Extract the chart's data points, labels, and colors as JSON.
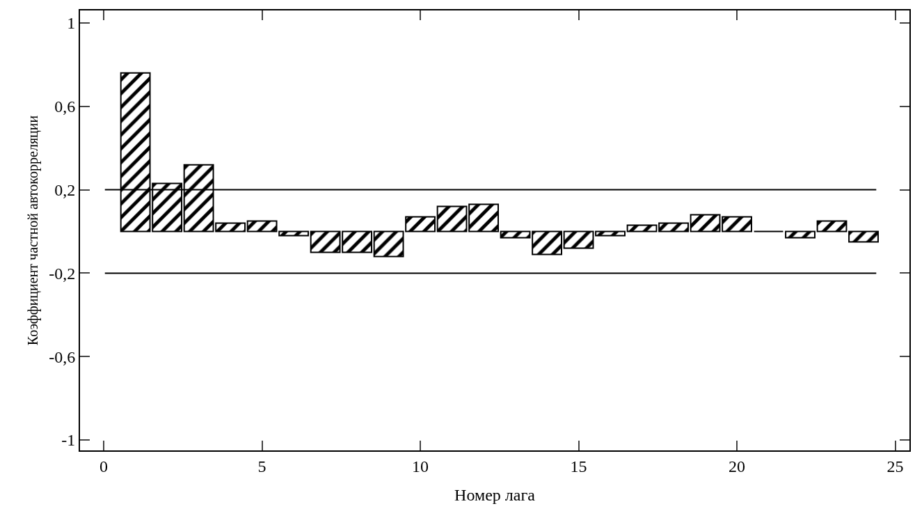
{
  "chart_data": {
    "type": "bar",
    "xlabel": "Номер лага",
    "ylabel": "Коэффициент частной автокорреляции",
    "x": [
      1,
      2,
      3,
      4,
      5,
      6,
      7,
      8,
      9,
      10,
      11,
      12,
      13,
      14,
      15,
      16,
      17,
      18,
      19,
      20,
      21,
      22,
      23,
      24
    ],
    "values": [
      0.76,
      0.23,
      0.32,
      0.04,
      0.05,
      -0.02,
      -0.1,
      -0.1,
      -0.12,
      0.07,
      0.12,
      0.13,
      -0.03,
      -0.11,
      -0.08,
      -0.02,
      0.03,
      0.04,
      0.08,
      0.07,
      0,
      -0.03,
      0.05,
      -0.05
    ],
    "color": "#000000",
    "xlim": [
      -0.75,
      25.45
    ],
    "xticks": [
      0,
      5,
      10,
      15,
      20,
      25
    ],
    "ylim": [
      -1.05,
      1.06
    ],
    "yticks": [
      1,
      {
        "value": 0.6,
        "label": "0,6"
      },
      {
        "value": 0.2,
        "label": "0,2"
      },
      {
        "value": -0.2,
        "label": "-0,2"
      },
      {
        "value": -0.6,
        "label": "-0,6"
      },
      -1
    ],
    "ref_lines": [
      {
        "axis": "y",
        "value": 0.2,
        "color": "#000000"
      },
      {
        "axis": "y",
        "value": -0.2,
        "color": "#000000"
      }
    ],
    "grid": false,
    "legend": false
  }
}
